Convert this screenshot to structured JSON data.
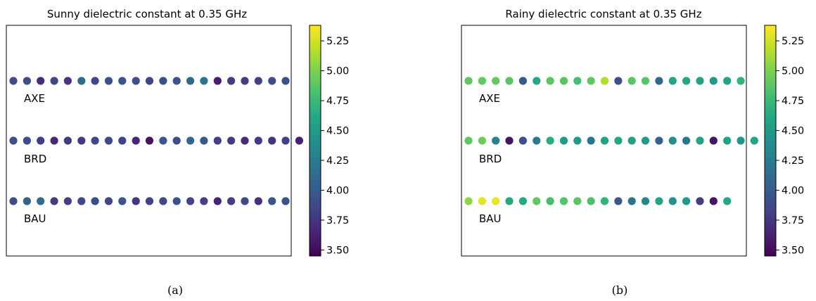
{
  "chart_data": [
    {
      "type": "scatter",
      "title": "Sunny dielectric constant at 0.35 GHz",
      "caption": "(a)",
      "colormap": "viridis",
      "color_range": [
        3.45,
        5.38
      ],
      "colorbar_ticks": [
        "3.50",
        "3.75",
        "4.00",
        "4.25",
        "4.50",
        "4.75",
        "5.00",
        "5.25"
      ],
      "series": [
        {
          "name": "AXE",
          "values": [
            3.9,
            3.9,
            3.7,
            3.88,
            3.75,
            4.12,
            3.86,
            3.92,
            3.96,
            3.92,
            3.85,
            3.92,
            3.92,
            4.1,
            4.18,
            3.6,
            3.78,
            3.8,
            3.82,
            3.9,
            3.92
          ]
        },
        {
          "name": "BRD",
          "values": [
            3.9,
            3.9,
            3.8,
            3.65,
            3.78,
            3.78,
            3.85,
            3.88,
            3.82,
            3.65,
            3.55,
            3.96,
            3.9,
            4.08,
            4.0,
            3.8,
            3.78,
            3.68,
            3.78,
            3.72,
            3.82,
            3.62
          ]
        },
        {
          "name": "BAU",
          "values": [
            3.9,
            4.05,
            4.12,
            3.8,
            3.82,
            3.86,
            3.9,
            3.85,
            3.96,
            3.75,
            3.82,
            3.88,
            3.92,
            3.85,
            3.82,
            3.65,
            3.8,
            3.88,
            3.72,
            3.95,
            3.92
          ]
        }
      ]
    },
    {
      "type": "scatter",
      "title": "Rainy dielectric constant at 0.35 GHz",
      "caption": "(b)",
      "colormap": "viridis",
      "color_range": [
        3.45,
        5.38
      ],
      "colorbar_ticks": [
        "3.50",
        "3.75",
        "4.00",
        "4.25",
        "4.50",
        "4.75",
        "5.00",
        "5.25"
      ],
      "series": [
        {
          "name": "AXE",
          "values": [
            4.9,
            4.9,
            4.92,
            4.86,
            3.98,
            4.6,
            4.88,
            4.86,
            4.8,
            4.9,
            5.15,
            3.92,
            4.86,
            4.88,
            4.1,
            4.58,
            4.6,
            4.58,
            4.5,
            4.55,
            4.7
          ]
        },
        {
          "name": "BRD",
          "values": [
            4.9,
            4.95,
            4.3,
            3.55,
            3.9,
            4.25,
            4.65,
            4.5,
            4.5,
            4.2,
            4.55,
            4.6,
            4.55,
            4.5,
            4.05,
            4.4,
            4.2,
            4.55,
            3.55,
            4.55,
            4.48,
            4.58
          ]
        },
        {
          "name": "BAU",
          "values": [
            5.05,
            5.3,
            5.32,
            4.62,
            4.62,
            4.9,
            4.8,
            4.85,
            4.88,
            4.82,
            4.7,
            3.98,
            4.2,
            4.35,
            4.58,
            4.45,
            4.48,
            3.8,
            3.55,
            4.6
          ]
        }
      ]
    }
  ]
}
